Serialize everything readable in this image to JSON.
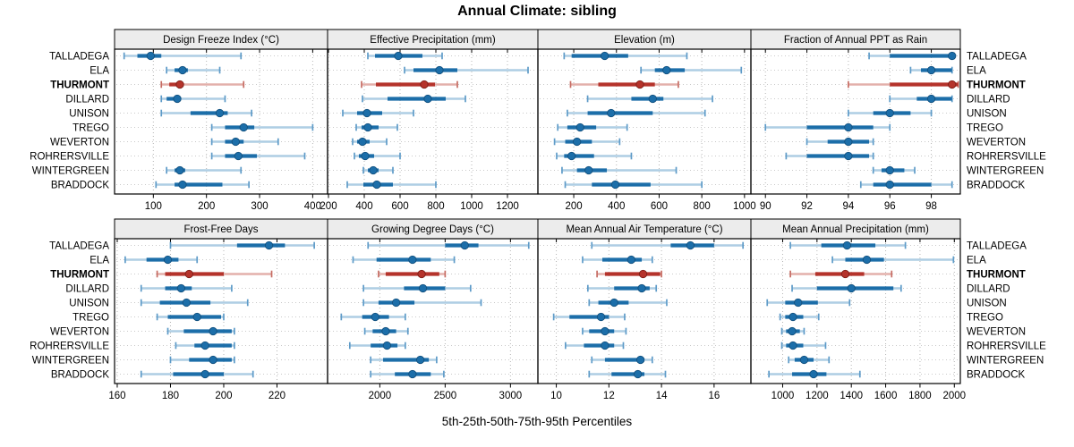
{
  "chart_data": {
    "type": "scatter",
    "subtype": "trellis-percentile-interval-dotplot",
    "title": "Annual Climate: sibling",
    "caption": "5th-25th-50th-75th-95th Percentiles",
    "percentile_labels": [
      "5th",
      "25th",
      "50th",
      "75th",
      "95th"
    ],
    "legend_position": "none",
    "grid": "dotted",
    "highlight_site": "THURMONT",
    "sites": [
      "TALLADEGA",
      "ELA",
      "THURMONT",
      "DILLARD",
      "UNISON",
      "TREGO",
      "WEVERTON",
      "ROHRERSVILLE",
      "WINTERGREEN",
      "BRADDOCK"
    ],
    "panels": [
      {
        "id": "design_freeze_index",
        "label": "Design Freeze Index (°C)",
        "row": 0,
        "col": 0,
        "xlim": [
          27,
          428
        ],
        "ticks": [
          100,
          200,
          300,
          400
        ],
        "values": [
          [
            45,
            70,
            95,
            115,
            265
          ],
          [
            125,
            140,
            155,
            165,
            225
          ],
          [
            115,
            130,
            150,
            155,
            270
          ],
          [
            115,
            125,
            145,
            150,
            235
          ],
          [
            115,
            170,
            225,
            240,
            285
          ],
          [
            210,
            235,
            270,
            290,
            400
          ],
          [
            210,
            235,
            255,
            270,
            335
          ],
          [
            210,
            235,
            260,
            295,
            385
          ],
          [
            125,
            140,
            150,
            160,
            265
          ],
          [
            105,
            140,
            155,
            230,
            280
          ]
        ]
      },
      {
        "id": "effective_precipitation",
        "label": "Effective Precipitation (mm)",
        "row": 0,
        "col": 1,
        "xlim": [
          195,
          1370
        ],
        "ticks": [
          200,
          400,
          600,
          800,
          1000,
          1200
        ],
        "values": [
          [
            420,
            460,
            590,
            725,
            835
          ],
          [
            625,
            675,
            820,
            920,
            1315
          ],
          [
            385,
            465,
            735,
            795,
            920
          ],
          [
            390,
            530,
            755,
            855,
            965
          ],
          [
            280,
            360,
            415,
            500,
            675
          ],
          [
            355,
            385,
            420,
            480,
            585
          ],
          [
            335,
            360,
            390,
            430,
            525
          ],
          [
            345,
            370,
            405,
            455,
            600
          ],
          [
            395,
            420,
            450,
            480,
            560
          ],
          [
            305,
            395,
            470,
            560,
            800
          ]
        ]
      },
      {
        "id": "elevation",
        "label": "Elevation (m)",
        "row": 0,
        "col": 2,
        "xlim": [
          32,
          1030
        ],
        "ticks": [
          200,
          400,
          600,
          800,
          1000
        ],
        "values": [
          [
            155,
            190,
            345,
            455,
            730
          ],
          [
            515,
            580,
            635,
            720,
            985
          ],
          [
            185,
            315,
            510,
            580,
            690
          ],
          [
            265,
            470,
            570,
            620,
            850
          ],
          [
            170,
            265,
            375,
            570,
            815
          ],
          [
            125,
            170,
            230,
            305,
            450
          ],
          [
            110,
            160,
            215,
            285,
            415
          ],
          [
            120,
            155,
            190,
            295,
            470
          ],
          [
            145,
            215,
            270,
            355,
            680
          ],
          [
            160,
            285,
            395,
            560,
            800
          ]
        ]
      },
      {
        "id": "fraction_ppt_as_rain",
        "label": "Fraction of Annual PPT as Rain",
        "row": 0,
        "col": 3,
        "xlim": [
          89.3,
          99.4
        ],
        "ticks": [
          90,
          92,
          94,
          96,
          98
        ],
        "values": [
          [
            95,
            96,
            99,
            99.1,
            99.1
          ],
          [
            97,
            97.5,
            98,
            99,
            99
          ],
          [
            94,
            96,
            99,
            99.3,
            99.3
          ],
          [
            96,
            97.3,
            98,
            99,
            99
          ],
          [
            94,
            95.2,
            96,
            97,
            98
          ],
          [
            90,
            92,
            94,
            95.2,
            96
          ],
          [
            92,
            93,
            94,
            95,
            95.2
          ],
          [
            91,
            92,
            94,
            95,
            95.2
          ],
          [
            95.2,
            95.6,
            96,
            96.7,
            97.2
          ],
          [
            94.6,
            95.2,
            96,
            98,
            99
          ]
        ]
      },
      {
        "id": "frost_free_days",
        "label": "Frost-Free Days",
        "row": 1,
        "col": 0,
        "xlim": [
          159,
          239
        ],
        "ticks": [
          160,
          180,
          200,
          220
        ],
        "values": [
          [
            180,
            205,
            217,
            223,
            234
          ],
          [
            163,
            171,
            179,
            183,
            190
          ],
          [
            175,
            178,
            187,
            200,
            218
          ],
          [
            169,
            178,
            184,
            188,
            203
          ],
          [
            169,
            176,
            186,
            195,
            209
          ],
          [
            175,
            179,
            190,
            199,
            200
          ],
          [
            179,
            185,
            196,
            203,
            204
          ],
          [
            182,
            189,
            193,
            203,
            204
          ],
          [
            180,
            187,
            196,
            203,
            204
          ],
          [
            169,
            181,
            193,
            200,
            211
          ]
        ]
      },
      {
        "id": "growing_degree_days",
        "label": "Growing Degree Days (°C)",
        "row": 1,
        "col": 1,
        "xlim": [
          1600,
          3210
        ],
        "ticks": [
          2000,
          2500,
          3000
        ],
        "values": [
          [
            1910,
            2500,
            2650,
            2755,
            3140
          ],
          [
            1795,
            1975,
            2250,
            2390,
            2570
          ],
          [
            1990,
            2045,
            2320,
            2455,
            2500
          ],
          [
            1875,
            2185,
            2330,
            2500,
            2695
          ],
          [
            1875,
            1990,
            2125,
            2265,
            2775
          ],
          [
            1705,
            1865,
            1965,
            2070,
            2195
          ],
          [
            1885,
            1945,
            2045,
            2125,
            2215
          ],
          [
            1770,
            1930,
            2055,
            2135,
            2195
          ],
          [
            1930,
            2025,
            2310,
            2375,
            2435
          ],
          [
            1930,
            2115,
            2250,
            2390,
            2490
          ]
        ]
      },
      {
        "id": "mean_annual_air_temperature",
        "label": "Mean Annual Air Temperature (°C)",
        "row": 1,
        "col": 2,
        "xlim": [
          9.3,
          17.4
        ],
        "ticks": [
          10,
          12,
          14,
          16
        ],
        "values": [
          [
            11.35,
            14.35,
            15.1,
            16.0,
            17.1
          ],
          [
            11.0,
            11.75,
            12.85,
            13.25,
            13.65
          ],
          [
            11.55,
            11.85,
            13.3,
            13.95,
            14.0
          ],
          [
            11.2,
            12.2,
            13.25,
            13.55,
            13.8
          ],
          [
            11.25,
            11.6,
            12.2,
            12.75,
            14.2
          ],
          [
            9.9,
            10.5,
            11.7,
            12.0,
            12.6
          ],
          [
            11.0,
            11.25,
            11.85,
            12.2,
            12.65
          ],
          [
            10.35,
            11.05,
            11.85,
            12.2,
            12.55
          ],
          [
            11.35,
            11.85,
            13.2,
            13.35,
            13.65
          ],
          [
            11.25,
            12.1,
            13.1,
            13.35,
            14.15
          ]
        ]
      },
      {
        "id": "mean_annual_precipitation",
        "label": "Mean Annual Precipitation (mm)",
        "row": 1,
        "col": 3,
        "xlim": [
          815,
          2035
        ],
        "ticks": [
          1000,
          1200,
          1400,
          1600,
          1800,
          2000
        ],
        "values": [
          [
            1045,
            1225,
            1375,
            1540,
            1715
          ],
          [
            1290,
            1365,
            1490,
            1590,
            1995
          ],
          [
            1045,
            1190,
            1365,
            1475,
            1635
          ],
          [
            1055,
            1200,
            1400,
            1645,
            1690
          ],
          [
            910,
            1015,
            1090,
            1205,
            1390
          ],
          [
            985,
            1015,
            1060,
            1120,
            1210
          ],
          [
            995,
            1020,
            1055,
            1100,
            1125
          ],
          [
            995,
            1020,
            1060,
            1120,
            1250
          ],
          [
            1035,
            1070,
            1125,
            1180,
            1270
          ],
          [
            920,
            1055,
            1180,
            1255,
            1450
          ]
        ]
      }
    ],
    "colors": {
      "series_main": "#1c6ea9",
      "series_light": "#aecde4",
      "series_cap": "#5e9bc8",
      "series_dot_edge": "#12507e",
      "highlight_main": "#b5332b",
      "highlight_light": "#e3b0ab",
      "highlight_cap": "#c66c63",
      "highlight_dot_edge": "#7e1d16",
      "strip_bg": "#ececec",
      "panel_border": "#000000",
      "gridline": "#b5b5b5",
      "row_guide": "#c9c9c9",
      "text": "#000000"
    }
  }
}
